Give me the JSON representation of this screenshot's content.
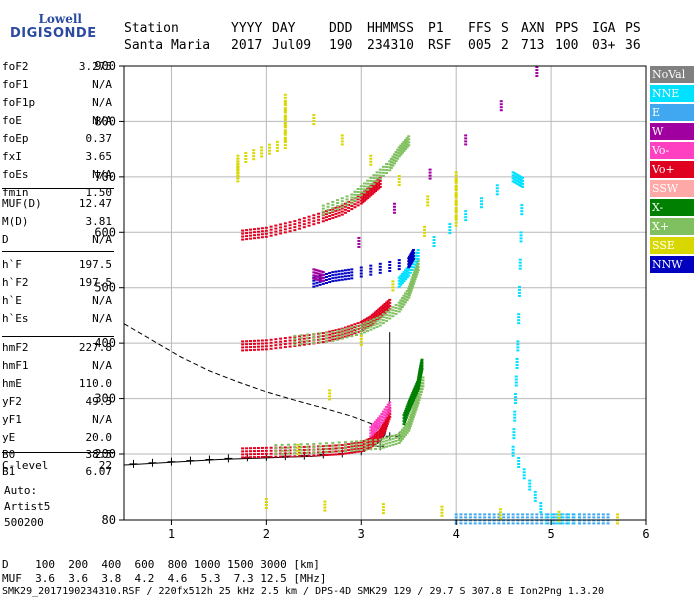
{
  "logo": {
    "top": "Lowell",
    "bottom": "DIGISONDE"
  },
  "header": {
    "labels": [
      "Station",
      "YYYY",
      "DAY",
      "DDD",
      "HHMMSS",
      "P1",
      "FFS",
      "S",
      "AXN",
      "PPS",
      "IGA",
      "PS"
    ],
    "values": [
      "Santa Maria",
      "2017",
      "Jul09",
      "190",
      "234310",
      "RSF",
      "005",
      "2",
      "713",
      "100",
      "03+",
      "36"
    ]
  },
  "params": {
    "group1": [
      {
        "label": "foF2",
        "value": "3.275"
      },
      {
        "label": "foF1",
        "value": "N/A"
      },
      {
        "label": "foF1p",
        "value": "N/A"
      },
      {
        "label": "foE",
        "value": "N/A"
      },
      {
        "label": "foEp",
        "value": "0.37"
      },
      {
        "label": "fxI",
        "value": "3.65"
      },
      {
        "label": "foEs",
        "value": "N/A"
      },
      {
        "label": "fmin",
        "value": "1.50"
      }
    ],
    "group2": [
      {
        "label": "MUF(D)",
        "value": "12.47"
      },
      {
        "label": "M(D)",
        "value": "3.81"
      },
      {
        "label": "D",
        "value": "N/A"
      }
    ],
    "group3": [
      {
        "label": "h`F",
        "value": "197.5"
      },
      {
        "label": "h`F2",
        "value": "197.5"
      },
      {
        "label": "h`E",
        "value": "N/A"
      },
      {
        "label": "h`Es",
        "value": "N/A"
      }
    ],
    "group4": [
      {
        "label": "hmF2",
        "value": "227.8"
      },
      {
        "label": "hmF1",
        "value": "N/A"
      },
      {
        "label": "hmE",
        "value": "110.0"
      },
      {
        "label": "yF2",
        "value": "49.3"
      },
      {
        "label": "yF1",
        "value": "N/A"
      },
      {
        "label": "yE",
        "value": "20.0"
      },
      {
        "label": "B0",
        "value": "38.5"
      },
      {
        "label": "B1",
        "value": "6.07"
      }
    ],
    "clevel": {
      "label": "C-level",
      "value": "22"
    },
    "auto_label": "Auto:",
    "auto_value": "Artist5",
    "auto_code": "500200"
  },
  "legend": [
    {
      "label": "NoVal",
      "color": "#808080"
    },
    {
      "label": "NNE",
      "color": "#00e0ff"
    },
    {
      "label": "E",
      "color": "#40a8f0"
    },
    {
      "label": "W",
      "color": "#a000a0"
    },
    {
      "label": "Vo-",
      "color": "#ff40c0"
    },
    {
      "label": "Vo+",
      "color": "#e00020"
    },
    {
      "label": "SSW",
      "color": "#ffa8a8"
    },
    {
      "label": "X-",
      "color": "#008000"
    },
    {
      "label": "X+",
      "color": "#80c060"
    },
    {
      "label": "SSE",
      "color": "#d8d800"
    },
    {
      "label": "NNW",
      "color": "#0000c0"
    }
  ],
  "footer": {
    "line1": "D    100  200  400  600  800 1000 1500 3000 [km]",
    "line2": "MUF  3.6  3.6  3.8  4.2  4.6  5.3  7.3 12.5 [MHz]",
    "line3": "SMK29_2017190234310.RSF / 220fx512h 25 kHz 2.5 km / DPS-4D SMK29 129 / 29.7 S 307.8 E Ion2Png 1.3.20"
  },
  "chart_data": {
    "type": "scatter",
    "xlim": [
      0.5,
      6.0
    ],
    "ylim": [
      80,
      900
    ],
    "x_ticks": [
      1,
      2,
      3,
      4,
      5,
      6
    ],
    "y_ticks": [
      80,
      200,
      300,
      400,
      500,
      600,
      700,
      800,
      900
    ],
    "grid": true,
    "series": [
      {
        "name": "Vo+",
        "color": "#e00020",
        "points": [
          [
            1.75,
            202
          ],
          [
            2.0,
            203
          ],
          [
            2.3,
            204
          ],
          [
            2.6,
            206
          ],
          [
            2.8,
            208
          ],
          [
            3.0,
            213
          ],
          [
            3.1,
            220
          ],
          [
            3.2,
            235
          ],
          [
            3.25,
            250
          ],
          [
            3.3,
            275
          ]
        ]
      },
      {
        "name": "X+",
        "color": "#80c060",
        "points": [
          [
            2.1,
            208
          ],
          [
            2.5,
            210
          ],
          [
            2.9,
            214
          ],
          [
            3.2,
            218
          ],
          [
            3.4,
            228
          ],
          [
            3.5,
            250
          ],
          [
            3.55,
            275
          ],
          [
            3.6,
            300
          ],
          [
            3.65,
            330
          ]
        ]
      },
      {
        "name": "X-",
        "color": "#008000",
        "points": [
          [
            3.45,
            262
          ],
          [
            3.5,
            285
          ],
          [
            3.55,
            305
          ],
          [
            3.6,
            325
          ],
          [
            3.62,
            345
          ],
          [
            3.64,
            362
          ]
        ]
      },
      {
        "name": "Vo-",
        "color": "#ff40c0",
        "points": [
          [
            3.1,
            240
          ],
          [
            3.2,
            260
          ],
          [
            3.3,
            285
          ]
        ]
      },
      {
        "name": "Vo+",
        "color": "#e00020",
        "points": [
          [
            1.75,
            395
          ],
          [
            2.0,
            397
          ],
          [
            2.3,
            403
          ],
          [
            2.6,
            410
          ],
          [
            2.8,
            418
          ],
          [
            3.0,
            430
          ],
          [
            3.1,
            440
          ],
          [
            3.2,
            455
          ],
          [
            3.3,
            470
          ]
        ]
      },
      {
        "name": "X+",
        "color": "#80c060",
        "points": [
          [
            2.3,
            405
          ],
          [
            2.7,
            412
          ],
          [
            3.0,
            425
          ],
          [
            3.2,
            440
          ],
          [
            3.4,
            465
          ],
          [
            3.5,
            490
          ],
          [
            3.55,
            515
          ],
          [
            3.6,
            540
          ]
        ]
      },
      {
        "name": "Vo+",
        "color": "#e00020",
        "points": [
          [
            1.75,
            595
          ],
          [
            2.0,
            600
          ],
          [
            2.3,
            612
          ],
          [
            2.6,
            628
          ],
          [
            2.8,
            640
          ],
          [
            3.0,
            660
          ],
          [
            3.1,
            675
          ],
          [
            3.2,
            690
          ]
        ]
      },
      {
        "name": "X+",
        "color": "#80c060",
        "points": [
          [
            2.6,
            640
          ],
          [
            2.9,
            660
          ],
          [
            3.1,
            690
          ],
          [
            3.3,
            720
          ],
          [
            3.4,
            745
          ],
          [
            3.5,
            765
          ]
        ]
      },
      {
        "name": "NNE",
        "color": "#00e0ff",
        "points": [
          [
            3.4,
            510
          ],
          [
            3.5,
            530
          ],
          [
            3.6,
            560
          ],
          [
            4.6,
            700
          ],
          [
            4.7,
            690
          ],
          [
            4.65,
            395
          ],
          [
            4.6,
            205
          ],
          [
            4.95,
            82
          ],
          [
            5.3,
            82
          ]
        ]
      },
      {
        "name": "E",
        "color": "#40a8f0",
        "points": [
          [
            4.0,
            82
          ],
          [
            4.3,
            82
          ],
          [
            4.6,
            82
          ],
          [
            4.9,
            82
          ],
          [
            5.3,
            82
          ],
          [
            5.6,
            82
          ]
        ]
      },
      {
        "name": "NNW",
        "color": "#0000c0",
        "points": [
          [
            2.5,
            510
          ],
          [
            2.7,
            520
          ],
          [
            2.9,
            525
          ],
          [
            3.5,
            545
          ],
          [
            3.55,
            560
          ]
        ]
      },
      {
        "name": "SSE",
        "color": "#d8d800",
        "points": [
          [
            1.7,
            700
          ],
          [
            1.7,
            730
          ],
          [
            2.2,
            760
          ],
          [
            2.2,
            840
          ],
          [
            4.0,
            620
          ],
          [
            4.0,
            700
          ],
          [
            2.0,
            110
          ],
          [
            5.7,
            82
          ]
        ]
      },
      {
        "name": "W",
        "color": "#a000a0",
        "points": [
          [
            2.5,
            525
          ],
          [
            2.6,
            520
          ],
          [
            4.85,
            890
          ]
        ]
      }
    ],
    "profile_curve": [
      [
        0.5,
        180
      ],
      [
        1.0,
        185
      ],
      [
        1.5,
        190
      ],
      [
        2.0,
        193
      ],
      [
        2.5,
        196
      ],
      [
        2.8,
        200
      ],
      [
        3.0,
        206
      ],
      [
        3.1,
        213
      ],
      [
        3.2,
        222
      ],
      [
        3.25,
        235
      ],
      [
        3.28,
        260
      ],
      [
        3.3,
        300
      ],
      [
        3.3,
        360
      ],
      [
        3.3,
        420
      ]
    ],
    "model_curve": [
      [
        0.5,
        435
      ],
      [
        0.8,
        405
      ],
      [
        1.1,
        375
      ],
      [
        1.4,
        350
      ],
      [
        1.7,
        330
      ],
      [
        2.0,
        312
      ],
      [
        2.3,
        297
      ],
      [
        2.6,
        283
      ],
      [
        2.9,
        268
      ],
      [
        3.1,
        255
      ],
      [
        3.25,
        240
      ]
    ],
    "trace_marks": [
      [
        0.6,
        182
      ],
      [
        0.8,
        184
      ],
      [
        1.0,
        186
      ],
      [
        1.2,
        188
      ],
      [
        1.4,
        190
      ],
      [
        1.6,
        192
      ],
      [
        1.8,
        194
      ],
      [
        2.0,
        195
      ],
      [
        2.2,
        196
      ],
      [
        2.4,
        197
      ],
      [
        2.6,
        199
      ],
      [
        2.8,
        201
      ],
      [
        3.0,
        205
      ],
      [
        3.2,
        214
      ],
      [
        3.3,
        232
      ],
      [
        3.4,
        232
      ]
    ]
  }
}
